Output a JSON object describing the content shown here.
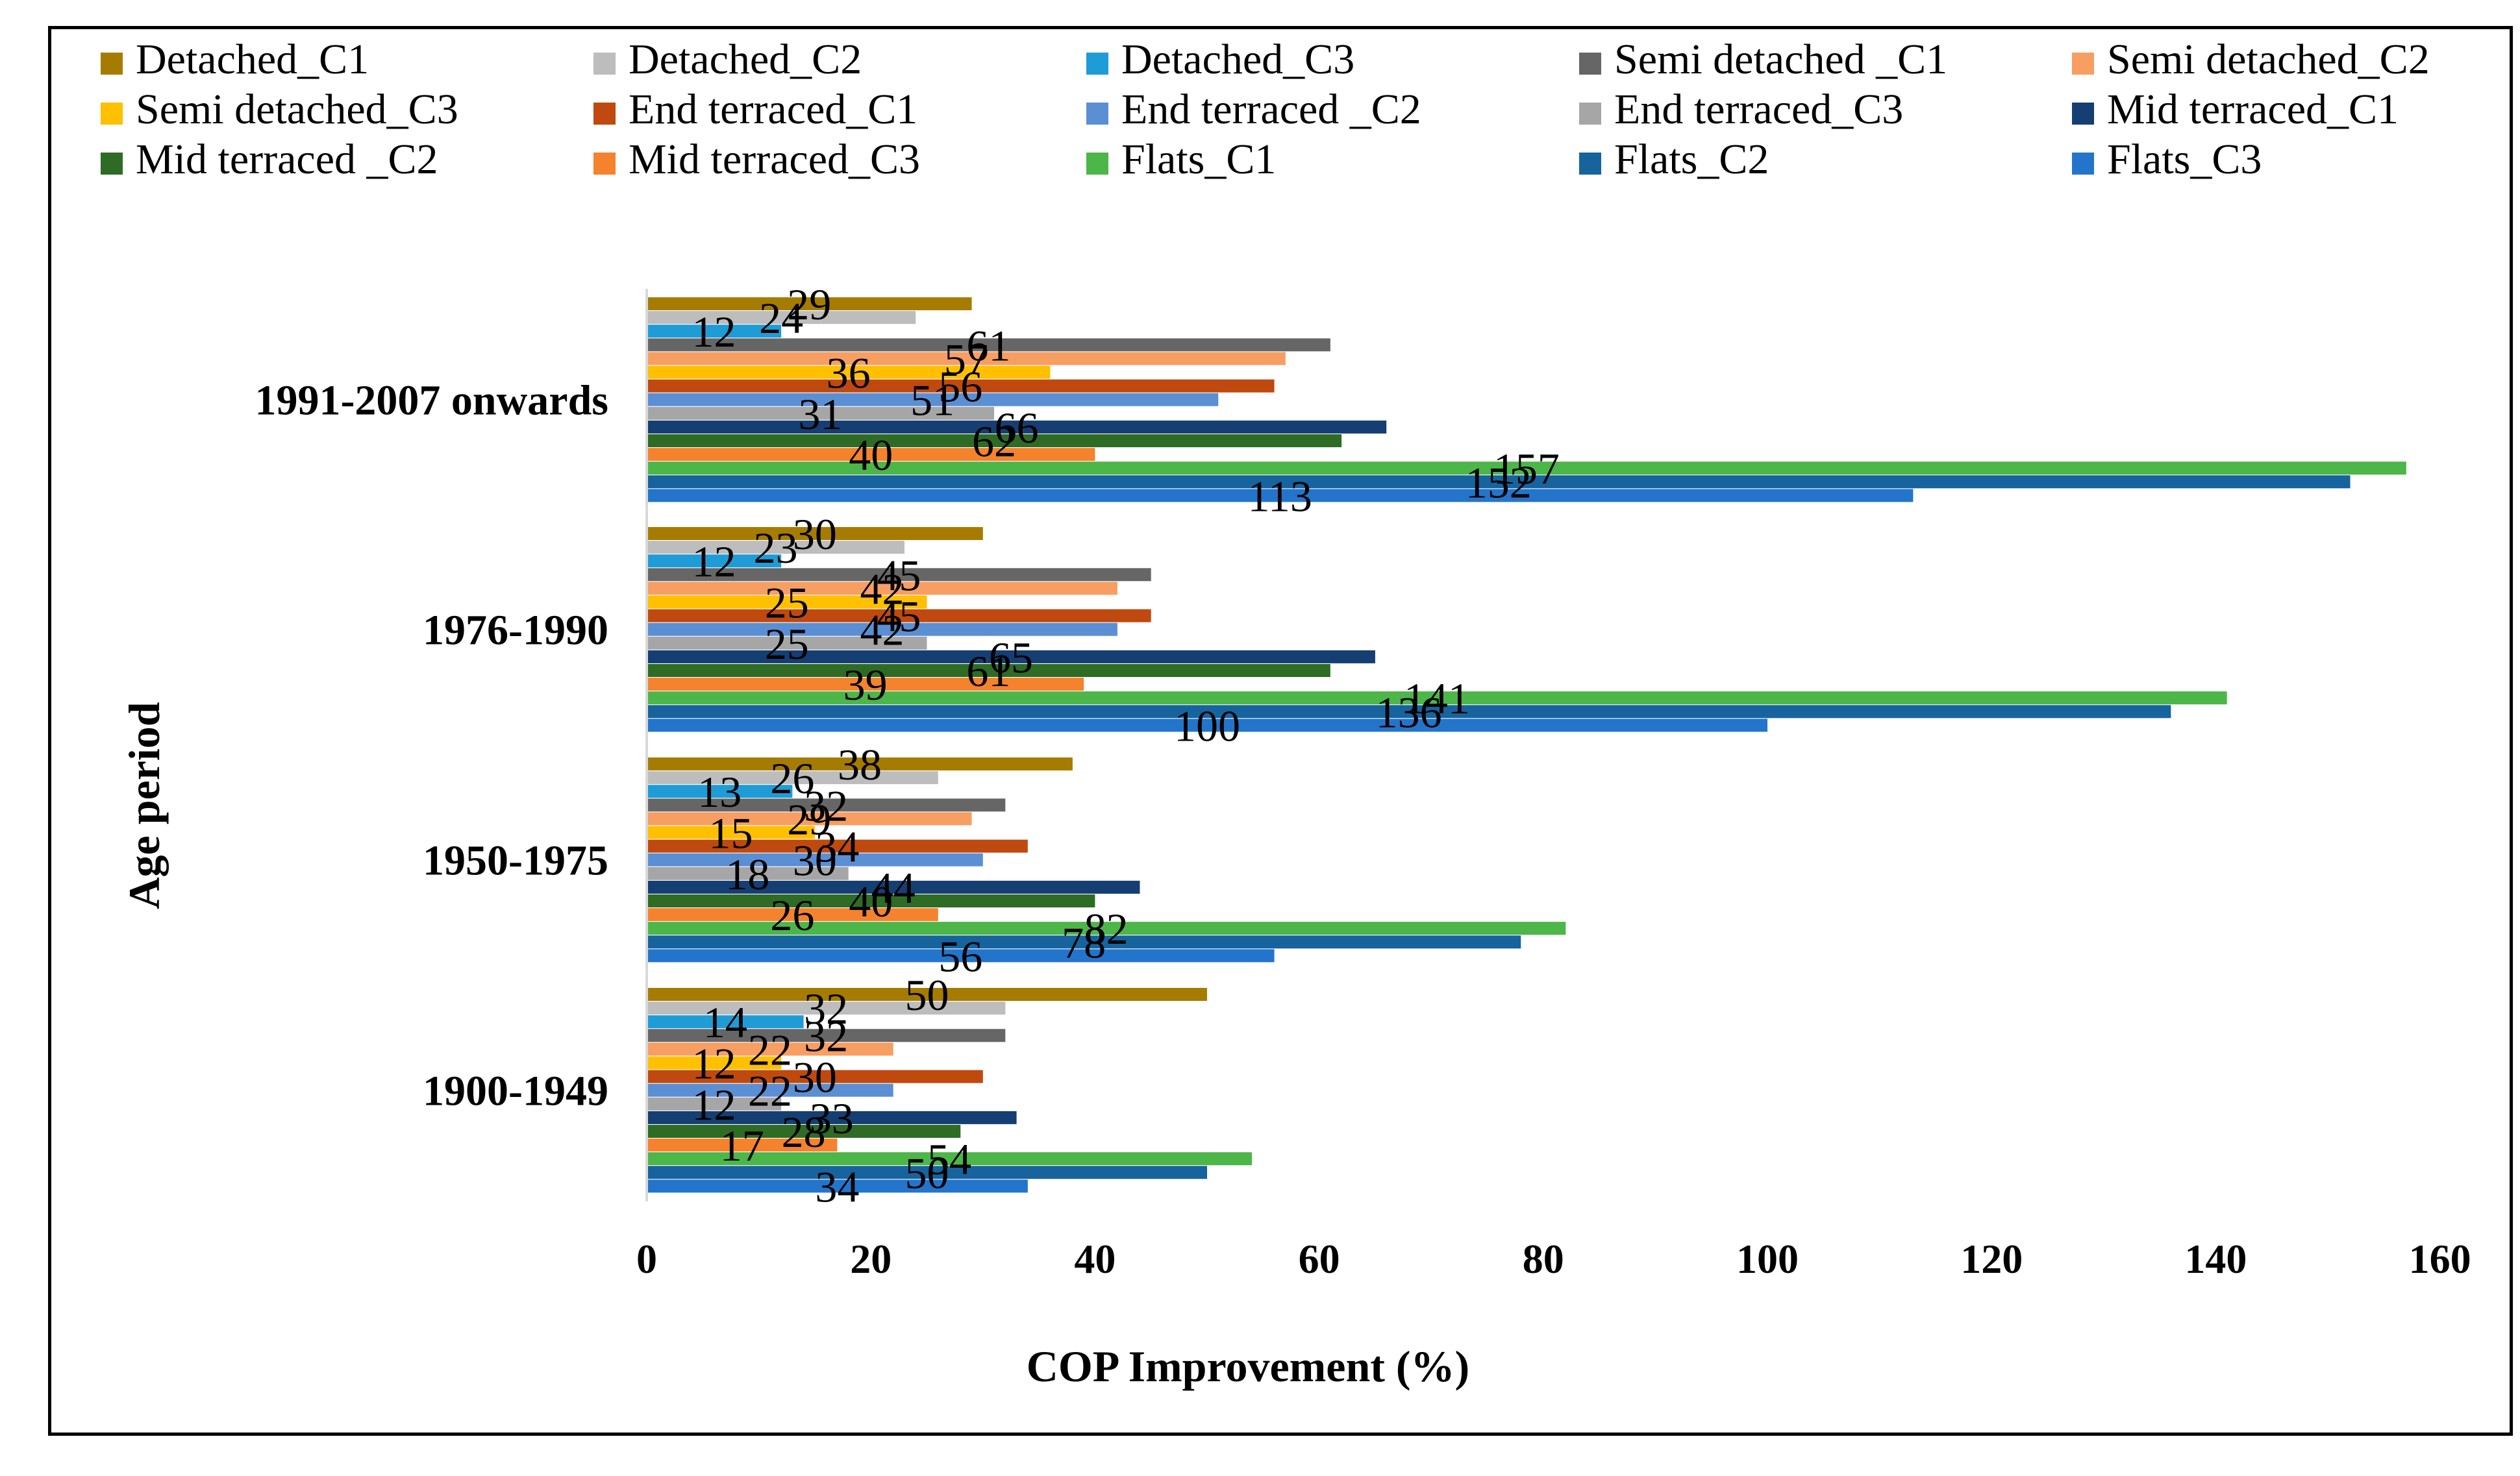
{
  "chart_data": {
    "type": "bar",
    "orientation": "horizontal",
    "title": "",
    "xlabel": "COP Improvement (%)",
    "ylabel": "Age period",
    "xlim": [
      0,
      160
    ],
    "xticks": [
      "0",
      "20",
      "40",
      "60",
      "80",
      "100",
      "120",
      "140",
      "160"
    ],
    "grid": false,
    "legend_position": "top",
    "categories": [
      "1991-2007 onwards",
      "1976-1990",
      "1950-1975",
      "1900-1949"
    ],
    "series": [
      {
        "name": "Detached_C1",
        "color": "#A67C00",
        "values": [
          29,
          30,
          38,
          50
        ]
      },
      {
        "name": "Detached_C2",
        "color": "#BDBDBD",
        "values": [
          24,
          23,
          26,
          32
        ]
      },
      {
        "name": "Detached_C3",
        "color": "#1F9CD6",
        "values": [
          12,
          12,
          13,
          14
        ]
      },
      {
        "name": "Semi detached _C1",
        "color": "#666666",
        "values": [
          61,
          45,
          32,
          32
        ]
      },
      {
        "name": "Semi detached_C2",
        "color": "#F79E63",
        "values": [
          57,
          42,
          29,
          22
        ]
      },
      {
        "name": "Semi detached_C3",
        "color": "#FFC000",
        "values": [
          36,
          25,
          15,
          12
        ]
      },
      {
        "name": "End terraced_C1",
        "color": "#C0490F",
        "values": [
          56,
          45,
          34,
          30
        ]
      },
      {
        "name": "End terraced _C2",
        "color": "#5B8FD4",
        "values": [
          51,
          42,
          30,
          22
        ]
      },
      {
        "name": "End terraced_C3",
        "color": "#A6A6A6",
        "values": [
          31,
          25,
          18,
          12
        ]
      },
      {
        "name": "Mid terraced_C1",
        "color": "#153E72",
        "values": [
          66,
          65,
          44,
          33
        ]
      },
      {
        "name": "Mid terraced _C2",
        "color": "#2E6B25",
        "values": [
          62,
          61,
          40,
          28
        ]
      },
      {
        "name": "Mid terraced_C3",
        "color": "#F5822D",
        "values": [
          40,
          39,
          26,
          17
        ]
      },
      {
        "name": "Flats_C1",
        "color": "#4CB648",
        "values": [
          157,
          141,
          82,
          54
        ]
      },
      {
        "name": "Flats_C2",
        "color": "#16639E",
        "values": [
          152,
          136,
          78,
          50
        ]
      },
      {
        "name": "Flats_C3",
        "color": "#2375CB",
        "values": [
          113,
          100,
          56,
          34
        ]
      }
    ]
  }
}
